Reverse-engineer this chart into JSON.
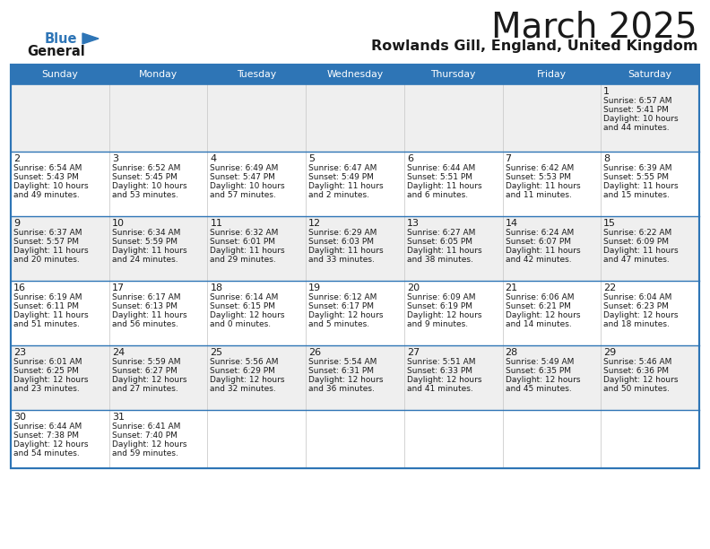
{
  "title": "March 2025",
  "subtitle": "Rowlands Gill, England, United Kingdom",
  "days_of_week": [
    "Sunday",
    "Monday",
    "Tuesday",
    "Wednesday",
    "Thursday",
    "Friday",
    "Saturday"
  ],
  "header_bg": "#2e75b6",
  "header_text": "#ffffff",
  "row_odd_bg": "#efefef",
  "row_even_bg": "#ffffff",
  "border_color": "#2e75b6",
  "cell_border_color": "#2e75b6",
  "text_color": "#1a1a1a",
  "calendar": [
    [
      null,
      null,
      null,
      null,
      null,
      null,
      {
        "day": 1,
        "sunrise": "6:57 AM",
        "sunset": "5:41 PM",
        "daylight": "10 hours",
        "daylight2": "and 44 minutes."
      }
    ],
    [
      {
        "day": 2,
        "sunrise": "6:54 AM",
        "sunset": "5:43 PM",
        "daylight": "10 hours",
        "daylight2": "and 49 minutes."
      },
      {
        "day": 3,
        "sunrise": "6:52 AM",
        "sunset": "5:45 PM",
        "daylight": "10 hours",
        "daylight2": "and 53 minutes."
      },
      {
        "day": 4,
        "sunrise": "6:49 AM",
        "sunset": "5:47 PM",
        "daylight": "10 hours",
        "daylight2": "and 57 minutes."
      },
      {
        "day": 5,
        "sunrise": "6:47 AM",
        "sunset": "5:49 PM",
        "daylight": "11 hours",
        "daylight2": "and 2 minutes."
      },
      {
        "day": 6,
        "sunrise": "6:44 AM",
        "sunset": "5:51 PM",
        "daylight": "11 hours",
        "daylight2": "and 6 minutes."
      },
      {
        "day": 7,
        "sunrise": "6:42 AM",
        "sunset": "5:53 PM",
        "daylight": "11 hours",
        "daylight2": "and 11 minutes."
      },
      {
        "day": 8,
        "sunrise": "6:39 AM",
        "sunset": "5:55 PM",
        "daylight": "11 hours",
        "daylight2": "and 15 minutes."
      }
    ],
    [
      {
        "day": 9,
        "sunrise": "6:37 AM",
        "sunset": "5:57 PM",
        "daylight": "11 hours",
        "daylight2": "and 20 minutes."
      },
      {
        "day": 10,
        "sunrise": "6:34 AM",
        "sunset": "5:59 PM",
        "daylight": "11 hours",
        "daylight2": "and 24 minutes."
      },
      {
        "day": 11,
        "sunrise": "6:32 AM",
        "sunset": "6:01 PM",
        "daylight": "11 hours",
        "daylight2": "and 29 minutes."
      },
      {
        "day": 12,
        "sunrise": "6:29 AM",
        "sunset": "6:03 PM",
        "daylight": "11 hours",
        "daylight2": "and 33 minutes."
      },
      {
        "day": 13,
        "sunrise": "6:27 AM",
        "sunset": "6:05 PM",
        "daylight": "11 hours",
        "daylight2": "and 38 minutes."
      },
      {
        "day": 14,
        "sunrise": "6:24 AM",
        "sunset": "6:07 PM",
        "daylight": "11 hours",
        "daylight2": "and 42 minutes."
      },
      {
        "day": 15,
        "sunrise": "6:22 AM",
        "sunset": "6:09 PM",
        "daylight": "11 hours",
        "daylight2": "and 47 minutes."
      }
    ],
    [
      {
        "day": 16,
        "sunrise": "6:19 AM",
        "sunset": "6:11 PM",
        "daylight": "11 hours",
        "daylight2": "and 51 minutes."
      },
      {
        "day": 17,
        "sunrise": "6:17 AM",
        "sunset": "6:13 PM",
        "daylight": "11 hours",
        "daylight2": "and 56 minutes."
      },
      {
        "day": 18,
        "sunrise": "6:14 AM",
        "sunset": "6:15 PM",
        "daylight": "12 hours",
        "daylight2": "and 0 minutes."
      },
      {
        "day": 19,
        "sunrise": "6:12 AM",
        "sunset": "6:17 PM",
        "daylight": "12 hours",
        "daylight2": "and 5 minutes."
      },
      {
        "day": 20,
        "sunrise": "6:09 AM",
        "sunset": "6:19 PM",
        "daylight": "12 hours",
        "daylight2": "and 9 minutes."
      },
      {
        "day": 21,
        "sunrise": "6:06 AM",
        "sunset": "6:21 PM",
        "daylight": "12 hours",
        "daylight2": "and 14 minutes."
      },
      {
        "day": 22,
        "sunrise": "6:04 AM",
        "sunset": "6:23 PM",
        "daylight": "12 hours",
        "daylight2": "and 18 minutes."
      }
    ],
    [
      {
        "day": 23,
        "sunrise": "6:01 AM",
        "sunset": "6:25 PM",
        "daylight": "12 hours",
        "daylight2": "and 23 minutes."
      },
      {
        "day": 24,
        "sunrise": "5:59 AM",
        "sunset": "6:27 PM",
        "daylight": "12 hours",
        "daylight2": "and 27 minutes."
      },
      {
        "day": 25,
        "sunrise": "5:56 AM",
        "sunset": "6:29 PM",
        "daylight": "12 hours",
        "daylight2": "and 32 minutes."
      },
      {
        "day": 26,
        "sunrise": "5:54 AM",
        "sunset": "6:31 PM",
        "daylight": "12 hours",
        "daylight2": "and 36 minutes."
      },
      {
        "day": 27,
        "sunrise": "5:51 AM",
        "sunset": "6:33 PM",
        "daylight": "12 hours",
        "daylight2": "and 41 minutes."
      },
      {
        "day": 28,
        "sunrise": "5:49 AM",
        "sunset": "6:35 PM",
        "daylight": "12 hours",
        "daylight2": "and 45 minutes."
      },
      {
        "day": 29,
        "sunrise": "5:46 AM",
        "sunset": "6:36 PM",
        "daylight": "12 hours",
        "daylight2": "and 50 minutes."
      }
    ],
    [
      {
        "day": 30,
        "sunrise": "6:44 AM",
        "sunset": "7:38 PM",
        "daylight": "12 hours",
        "daylight2": "and 54 minutes."
      },
      {
        "day": 31,
        "sunrise": "6:41 AM",
        "sunset": "7:40 PM",
        "daylight": "12 hours",
        "daylight2": "and 59 minutes."
      },
      null,
      null,
      null,
      null,
      null
    ]
  ]
}
